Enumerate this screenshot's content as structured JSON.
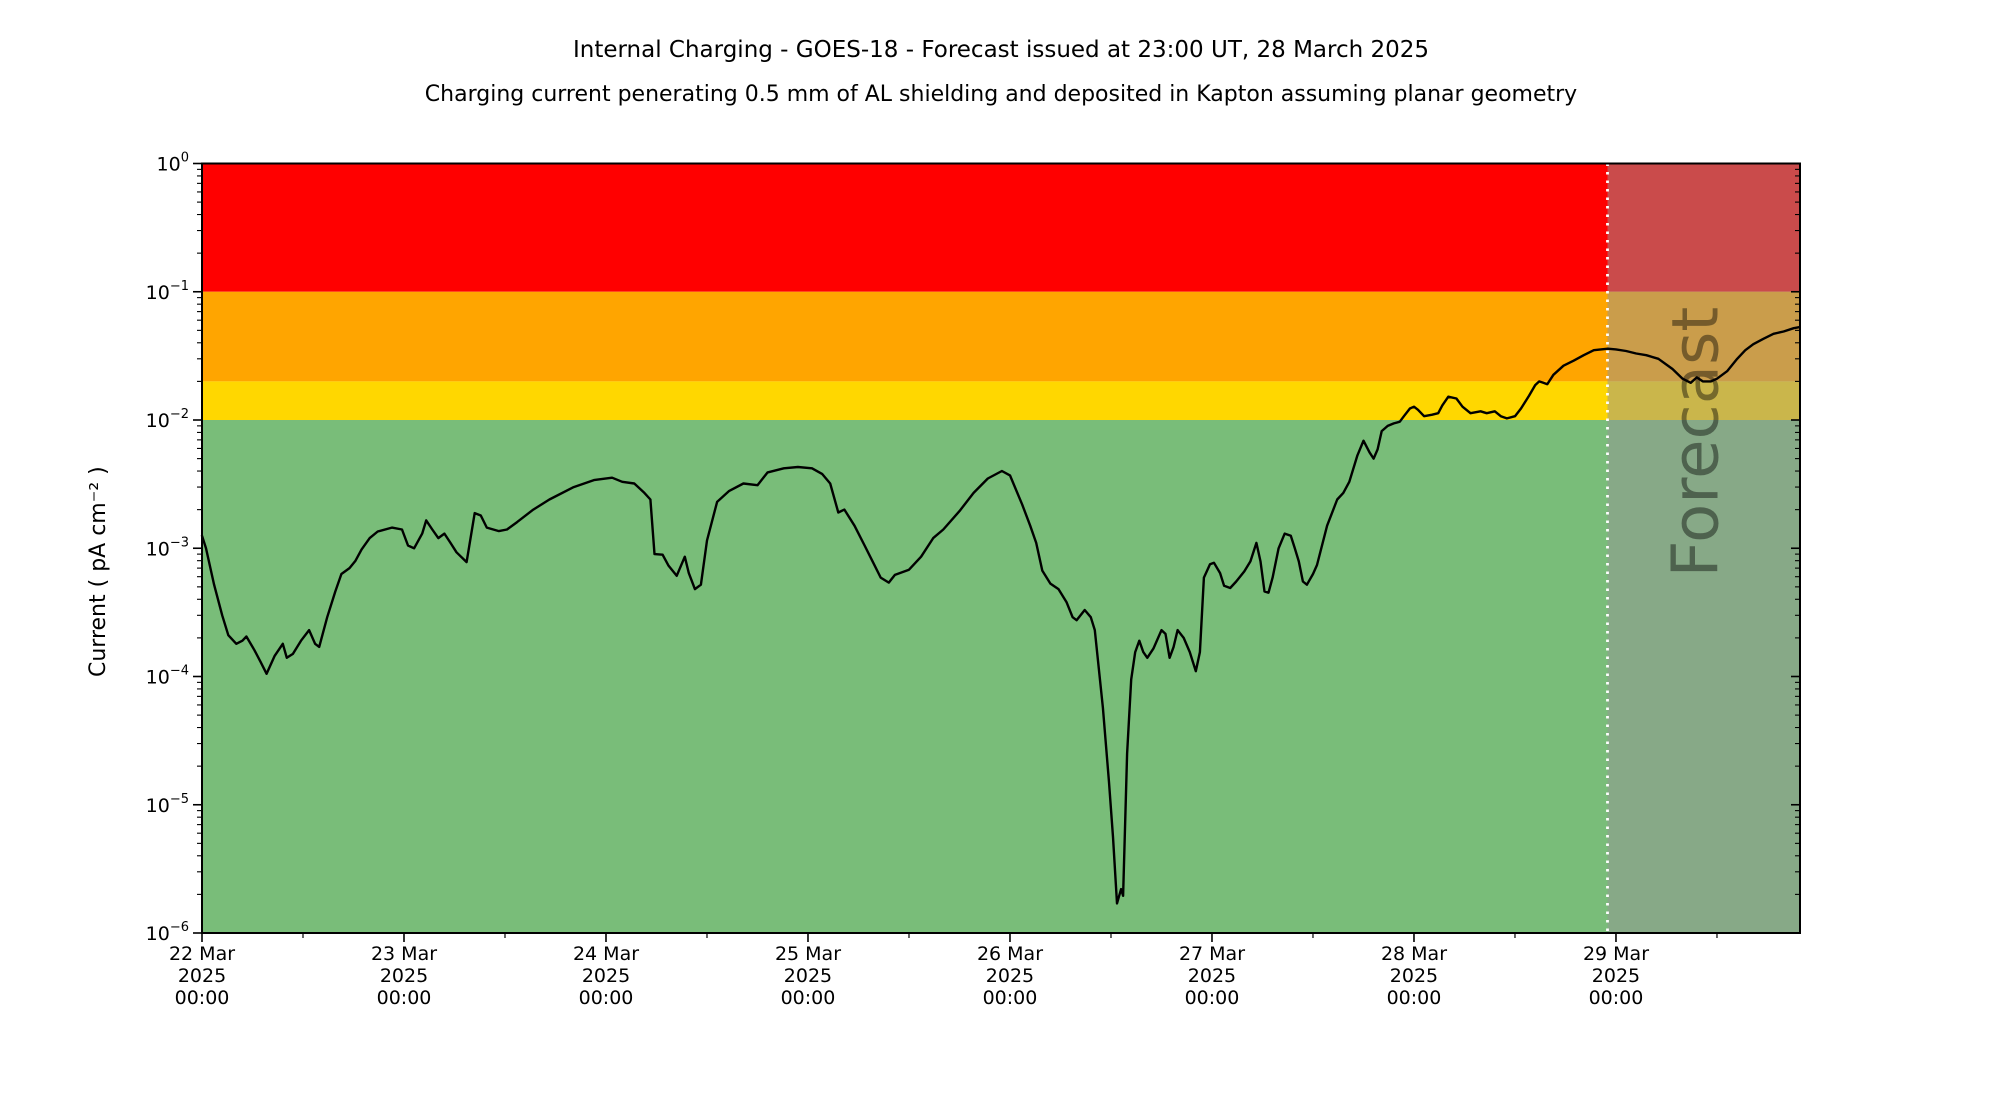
{
  "chart_data": {
    "type": "line",
    "title": "Internal Charging - GOES-18 - Forecast issued at 23:00 UT, 28 March 2025",
    "subtitle": "Charging current penerating 0.5 mm of AL shielding and deposited in Kapton assuming planar geometry",
    "ylabel": "Current ( pA cm⁻² )",
    "y_scale": "log",
    "y_range_exp": [
      -6,
      0
    ],
    "x_unit": "days from 22 Mar 2025 00:00 UT",
    "x_range": [
      0,
      7.911
    ],
    "x_minor_tick_interval_days": 0.5,
    "grid": "off",
    "legend": "none",
    "x_ticks": [
      {
        "day": 0,
        "lines": [
          "22 Mar",
          "2025",
          "00:00"
        ]
      },
      {
        "day": 1,
        "lines": [
          "23 Mar",
          "2025",
          "00:00"
        ]
      },
      {
        "day": 2,
        "lines": [
          "24 Mar",
          "2025",
          "00:00"
        ]
      },
      {
        "day": 3,
        "lines": [
          "25 Mar",
          "2025",
          "00:00"
        ]
      },
      {
        "day": 4,
        "lines": [
          "26 Mar",
          "2025",
          "00:00"
        ]
      },
      {
        "day": 5,
        "lines": [
          "27 Mar",
          "2025",
          "00:00"
        ]
      },
      {
        "day": 6,
        "lines": [
          "28 Mar",
          "2025",
          "00:00"
        ]
      },
      {
        "day": 7,
        "lines": [
          "29 Mar",
          "2025",
          "00:00"
        ]
      }
    ],
    "y_ticks": [
      {
        "exp": 0,
        "sup": "0"
      },
      {
        "exp": -1,
        "sup": "−1"
      },
      {
        "exp": -2,
        "sup": "−2"
      },
      {
        "exp": -3,
        "sup": "−3"
      },
      {
        "exp": -4,
        "sup": "−4"
      },
      {
        "exp": -5,
        "sup": "−5"
      },
      {
        "exp": -6,
        "sup": "−6"
      }
    ],
    "bands": [
      {
        "name": "red",
        "from": 0.1,
        "to": 1.0,
        "color": "#ff0000"
      },
      {
        "name": "orange",
        "from": 0.02,
        "to": 0.1,
        "color": "#ffa500"
      },
      {
        "name": "yellow",
        "from": 0.01,
        "to": 0.02,
        "color": "#ffd700"
      },
      {
        "name": "green",
        "from": 1e-06,
        "to": 0.01,
        "color": "#79bd79"
      }
    ],
    "forecast": {
      "label": "Forecast",
      "start_day": 6.958,
      "issue_time": "23:00 UT, 28 March 2025",
      "overlay_color": "rgba(150,150,150,0.5)",
      "boundary_line_color": "#ffffff",
      "watermark_color": "#3c3c3c"
    },
    "series": [
      {
        "name": "charging-current",
        "color": "#000000",
        "points": [
          [
            0.0,
            0.00125
          ],
          [
            0.02,
            0.001
          ],
          [
            0.06,
            0.00052
          ],
          [
            0.1,
            0.0003
          ],
          [
            0.13,
            0.00021
          ],
          [
            0.17,
            0.00018
          ],
          [
            0.2,
            0.00019
          ],
          [
            0.22,
            0.000205
          ],
          [
            0.26,
            0.00016
          ],
          [
            0.29,
            0.00013
          ],
          [
            0.32,
            0.000105
          ],
          [
            0.36,
            0.000145
          ],
          [
            0.4,
            0.00018
          ],
          [
            0.42,
            0.00014
          ],
          [
            0.45,
            0.00015
          ],
          [
            0.49,
            0.00019
          ],
          [
            0.53,
            0.00023
          ],
          [
            0.56,
            0.00018
          ],
          [
            0.58,
            0.00017
          ],
          [
            0.62,
            0.00029
          ],
          [
            0.66,
            0.00046
          ],
          [
            0.69,
            0.00063
          ],
          [
            0.73,
            0.0007
          ],
          [
            0.76,
            0.0008
          ],
          [
            0.79,
            0.00098
          ],
          [
            0.83,
            0.0012
          ],
          [
            0.87,
            0.00135
          ],
          [
            0.94,
            0.00145
          ],
          [
            0.99,
            0.0014
          ],
          [
            1.02,
            0.00105
          ],
          [
            1.05,
            0.001
          ],
          [
            1.09,
            0.0013
          ],
          [
            1.11,
            0.00165
          ],
          [
            1.14,
            0.0014
          ],
          [
            1.17,
            0.0012
          ],
          [
            1.2,
            0.0013
          ],
          [
            1.23,
            0.0011
          ],
          [
            1.26,
            0.00093
          ],
          [
            1.31,
            0.00078
          ],
          [
            1.35,
            0.00188
          ],
          [
            1.38,
            0.0018
          ],
          [
            1.41,
            0.00145
          ],
          [
            1.47,
            0.00136
          ],
          [
            1.51,
            0.0014
          ],
          [
            1.56,
            0.0016
          ],
          [
            1.64,
            0.002
          ],
          [
            1.72,
            0.0024
          ],
          [
            1.84,
            0.003
          ],
          [
            1.94,
            0.0034
          ],
          [
            2.03,
            0.00355
          ],
          [
            2.08,
            0.0033
          ],
          [
            2.14,
            0.0032
          ],
          [
            2.19,
            0.0027
          ],
          [
            2.22,
            0.0024
          ],
          [
            2.24,
            0.0009
          ],
          [
            2.28,
            0.00089
          ],
          [
            2.31,
            0.00073
          ],
          [
            2.35,
            0.00061
          ],
          [
            2.39,
            0.00086
          ],
          [
            2.41,
            0.00064
          ],
          [
            2.44,
            0.00048
          ],
          [
            2.47,
            0.00052
          ],
          [
            2.5,
            0.00115
          ],
          [
            2.55,
            0.0023
          ],
          [
            2.61,
            0.0028
          ],
          [
            2.68,
            0.0032
          ],
          [
            2.75,
            0.0031
          ],
          [
            2.8,
            0.0039
          ],
          [
            2.88,
            0.0042
          ],
          [
            2.95,
            0.0043
          ],
          [
            3.02,
            0.0042
          ],
          [
            3.07,
            0.0038
          ],
          [
            3.11,
            0.0032
          ],
          [
            3.15,
            0.0019
          ],
          [
            3.18,
            0.002
          ],
          [
            3.23,
            0.0015
          ],
          [
            3.28,
            0.00105
          ],
          [
            3.32,
            0.00079
          ],
          [
            3.36,
            0.00059
          ],
          [
            3.4,
            0.00054
          ],
          [
            3.43,
            0.00062
          ],
          [
            3.5,
            0.00068
          ],
          [
            3.56,
            0.00086
          ],
          [
            3.62,
            0.0012
          ],
          [
            3.67,
            0.0014
          ],
          [
            3.75,
            0.00195
          ],
          [
            3.82,
            0.0027
          ],
          [
            3.89,
            0.0035
          ],
          [
            3.96,
            0.004
          ],
          [
            4.0,
            0.0037
          ],
          [
            4.06,
            0.0022
          ],
          [
            4.1,
            0.0015
          ],
          [
            4.13,
            0.0011
          ],
          [
            4.16,
            0.00067
          ],
          [
            4.2,
            0.00053
          ],
          [
            4.24,
            0.00048
          ],
          [
            4.28,
            0.00038
          ],
          [
            4.31,
            0.00029
          ],
          [
            4.33,
            0.000275
          ],
          [
            4.37,
            0.00033
          ],
          [
            4.4,
            0.00029
          ],
          [
            4.42,
            0.00023
          ],
          [
            4.46,
            5.7e-05
          ],
          [
            4.49,
            1.5e-05
          ],
          [
            4.51,
            5.6e-06
          ],
          [
            4.53,
            1.7e-06
          ],
          [
            4.55,
            2.2e-06
          ],
          [
            4.56,
            1.95e-06
          ],
          [
            4.58,
            2.5e-05
          ],
          [
            4.6,
            9.5e-05
          ],
          [
            4.62,
            0.000155
          ],
          [
            4.64,
            0.00019
          ],
          [
            4.66,
            0.000155
          ],
          [
            4.68,
            0.00014
          ],
          [
            4.71,
            0.000165
          ],
          [
            4.75,
            0.00023
          ],
          [
            4.77,
            0.000215
          ],
          [
            4.79,
            0.00014
          ],
          [
            4.81,
            0.00017
          ],
          [
            4.83,
            0.00023
          ],
          [
            4.86,
            0.0002
          ],
          [
            4.89,
            0.000155
          ],
          [
            4.92,
            0.00011
          ],
          [
            4.94,
            0.000155
          ],
          [
            4.96,
            0.00059
          ],
          [
            4.99,
            0.00075
          ],
          [
            5.01,
            0.00077
          ],
          [
            5.04,
            0.00064
          ],
          [
            5.06,
            0.00051
          ],
          [
            5.09,
            0.00049
          ],
          [
            5.12,
            0.00055
          ],
          [
            5.16,
            0.00066
          ],
          [
            5.19,
            0.00079
          ],
          [
            5.22,
            0.0011
          ],
          [
            5.24,
            0.00079
          ],
          [
            5.26,
            0.00046
          ],
          [
            5.28,
            0.00045
          ],
          [
            5.3,
            0.00059
          ],
          [
            5.33,
            0.001
          ],
          [
            5.36,
            0.0013
          ],
          [
            5.39,
            0.00125
          ],
          [
            5.41,
            0.001
          ],
          [
            5.43,
            0.00079
          ],
          [
            5.45,
            0.00055
          ],
          [
            5.47,
            0.00052
          ],
          [
            5.5,
            0.00063
          ],
          [
            5.52,
            0.00074
          ],
          [
            5.57,
            0.0015
          ],
          [
            5.62,
            0.0024
          ],
          [
            5.65,
            0.0027
          ],
          [
            5.68,
            0.0033
          ],
          [
            5.72,
            0.0053
          ],
          [
            5.75,
            0.0069
          ],
          [
            5.78,
            0.0056
          ],
          [
            5.8,
            0.005
          ],
          [
            5.82,
            0.0059
          ],
          [
            5.84,
            0.0082
          ],
          [
            5.87,
            0.009
          ],
          [
            5.9,
            0.0094
          ],
          [
            5.93,
            0.0097
          ],
          [
            5.95,
            0.0107
          ],
          [
            5.98,
            0.0123
          ],
          [
            6.0,
            0.0127
          ],
          [
            6.02,
            0.012
          ],
          [
            6.05,
            0.0107
          ],
          [
            6.09,
            0.011
          ],
          [
            6.12,
            0.0113
          ],
          [
            6.14,
            0.013
          ],
          [
            6.17,
            0.0152
          ],
          [
            6.21,
            0.0147
          ],
          [
            6.24,
            0.0127
          ],
          [
            6.28,
            0.0113
          ],
          [
            6.33,
            0.0117
          ],
          [
            6.36,
            0.0113
          ],
          [
            6.4,
            0.0117
          ],
          [
            6.43,
            0.0107
          ],
          [
            6.46,
            0.0103
          ],
          [
            6.5,
            0.0107
          ],
          [
            6.53,
            0.0123
          ],
          [
            6.57,
            0.0155
          ],
          [
            6.6,
            0.0187
          ],
          [
            6.62,
            0.02
          ],
          [
            6.64,
            0.0195
          ],
          [
            6.66,
            0.019
          ],
          [
            6.69,
            0.0225
          ],
          [
            6.74,
            0.0265
          ],
          [
            6.79,
            0.029
          ],
          [
            6.84,
            0.032
          ],
          [
            6.89,
            0.035
          ],
          [
            6.96,
            0.036
          ],
          [
            7.0,
            0.0355
          ],
          [
            7.05,
            0.0345
          ],
          [
            7.1,
            0.033
          ],
          [
            7.15,
            0.032
          ],
          [
            7.21,
            0.03
          ],
          [
            7.28,
            0.025
          ],
          [
            7.33,
            0.021
          ],
          [
            7.37,
            0.0195
          ],
          [
            7.4,
            0.0215
          ],
          [
            7.43,
            0.02
          ],
          [
            7.47,
            0.02
          ],
          [
            7.5,
            0.021
          ],
          [
            7.55,
            0.024
          ],
          [
            7.6,
            0.03
          ],
          [
            7.64,
            0.035
          ],
          [
            7.68,
            0.039
          ],
          [
            7.73,
            0.043
          ],
          [
            7.78,
            0.047
          ],
          [
            7.83,
            0.049
          ],
          [
            7.88,
            0.052
          ],
          [
            7.91,
            0.053
          ]
        ]
      }
    ]
  }
}
